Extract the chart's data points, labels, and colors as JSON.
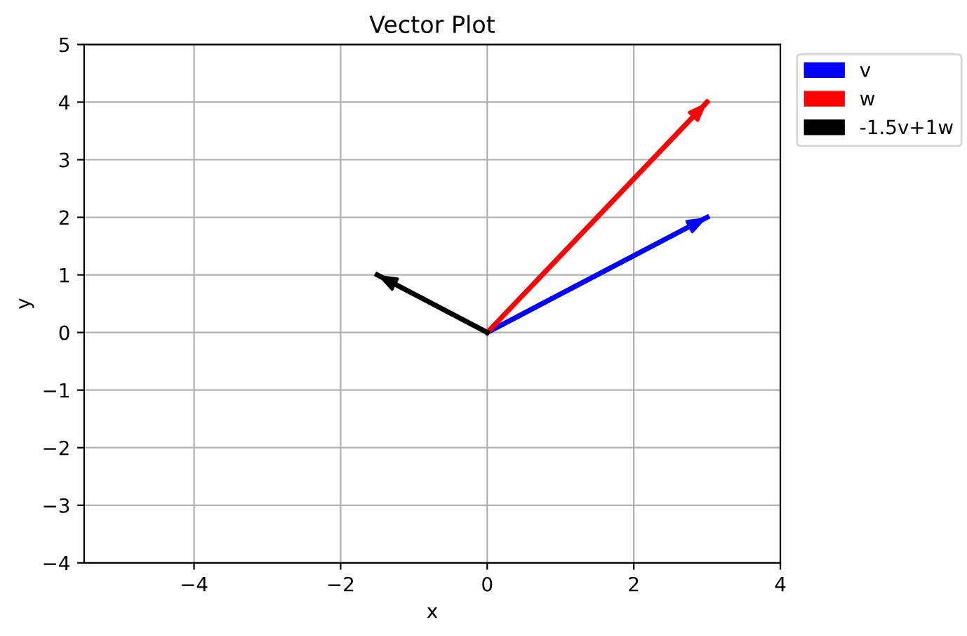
{
  "chart_data": {
    "type": "line",
    "title": "Vector Plot",
    "xlabel": "x",
    "ylabel": "y",
    "series": [
      {
        "name": "v",
        "color": "#0000ff",
        "x": [
          0,
          3
        ],
        "values": [
          0,
          2
        ]
      },
      {
        "name": "w",
        "color": "#ff0000",
        "x": [
          0,
          3
        ],
        "values": [
          0,
          4
        ]
      },
      {
        "name": "-1.5v+1w",
        "color": "#000000",
        "x": [
          0,
          -1.5
        ],
        "values": [
          0,
          1
        ]
      }
    ],
    "xlim": [
      -5.5,
      4
    ],
    "ylim": [
      -4,
      5
    ],
    "xticks": [
      {
        "value": -4,
        "label": "−4"
      },
      {
        "value": -2,
        "label": "−2"
      },
      0,
      2,
      4
    ],
    "yticks": [
      {
        "value": -4,
        "label": "−4"
      },
      {
        "value": -3,
        "label": "−3"
      },
      {
        "value": -2,
        "label": "−2"
      },
      {
        "value": -1,
        "label": "−1"
      },
      0,
      1,
      2,
      3,
      4,
      5
    ],
    "grid": true,
    "legend": "top right"
  }
}
